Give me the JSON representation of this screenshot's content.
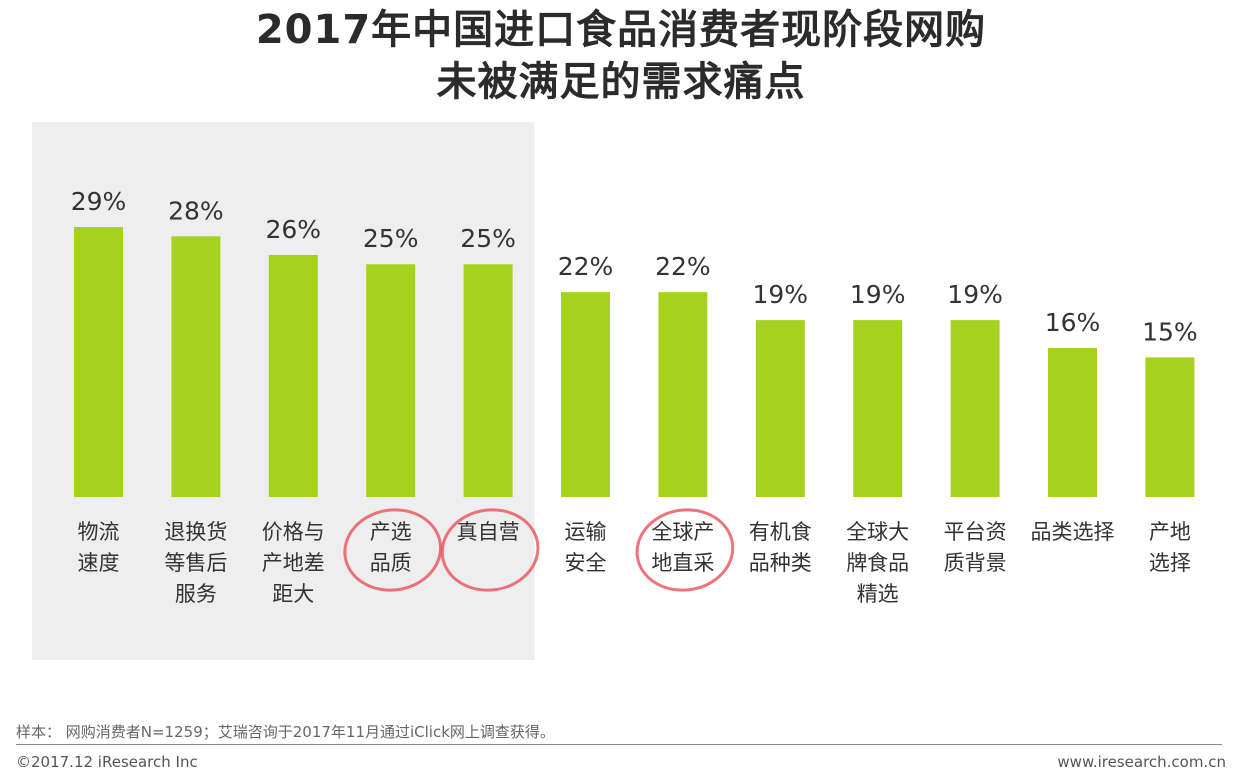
{
  "title_lines": [
    "2017年中国进口食品消费者现阶段网购",
    "未被满足的需求痛点"
  ],
  "chart_data": {
    "type": "bar",
    "title": "2017年中国进口食品消费者现阶段网购未被满足的需求痛点",
    "categories": [
      [
        "物流",
        "速度"
      ],
      [
        "退换货",
        "等售后",
        "服务"
      ],
      [
        "价格与",
        "产地差",
        "距大"
      ],
      [
        "产选",
        "品质"
      ],
      [
        "真自营"
      ],
      [
        "运输",
        "安全"
      ],
      [
        "全球产",
        "地直采"
      ],
      [
        "有机食",
        "品种类"
      ],
      [
        "全球大",
        "牌食品",
        "精选"
      ],
      [
        "平台资",
        "质背景"
      ],
      [
        "品类选择"
      ],
      [
        "产地",
        "选择"
      ]
    ],
    "values": [
      29,
      28,
      26,
      25,
      25,
      22,
      22,
      19,
      19,
      19,
      16,
      15
    ],
    "value_labels": [
      "29%",
      "28%",
      "26%",
      "25%",
      "25%",
      "22%",
      "22%",
      "19%",
      "19%",
      "19%",
      "16%",
      "15%"
    ],
    "ylim": [
      0,
      29
    ],
    "highlight_first_n": 5,
    "circled_indices": [
      3,
      4,
      6
    ],
    "grid": false,
    "legend": false,
    "colors": {
      "bar": "#a6d11e",
      "highlight_bg": "#eeeeee",
      "circle": "#e8505b",
      "text": "#333333"
    }
  },
  "footer": {
    "note": "样本： 网购消费者N=1259；艾瑞咨询于2017年11月通过iClick网上调查获得。",
    "copyright": "©2017.12 iResearch Inc",
    "website": "www.iresearch.com.cn"
  }
}
